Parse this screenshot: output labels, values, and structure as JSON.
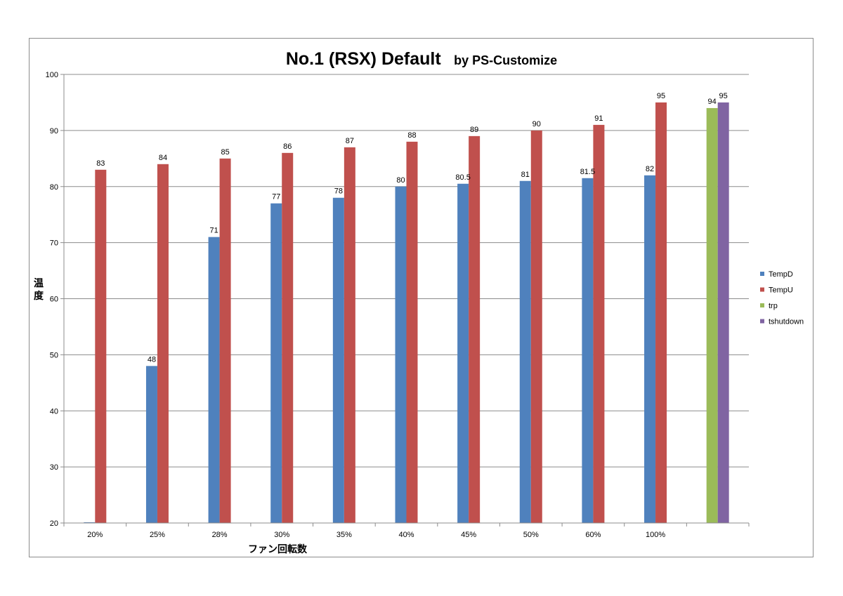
{
  "chart_data": {
    "type": "bar",
    "title": "No.1 (RSX)  Default",
    "subtitle": "by PS-Customize",
    "xlabel": "ファン回転数",
    "ylabel": "温度",
    "ylim": [
      20,
      100
    ],
    "yticks": [
      20,
      30,
      40,
      50,
      60,
      70,
      80,
      90,
      100
    ],
    "grid": true,
    "legend_position": "right",
    "categories": [
      "20%",
      "25%",
      "28%",
      "30%",
      "35%",
      "40%",
      "45%",
      "50%",
      "60%",
      "100%",
      ""
    ],
    "series": [
      {
        "name": "TempD",
        "color": "#4f81bd",
        "values": [
          20,
          48,
          71,
          77,
          78,
          80,
          80.5,
          81,
          81.5,
          82,
          null
        ],
        "labels": [
          "",
          "48",
          "71",
          "77",
          "78",
          "80",
          "80.5",
          "81",
          "81.5",
          "82",
          ""
        ]
      },
      {
        "name": "TempU",
        "color": "#c0504d",
        "values": [
          83,
          84,
          85,
          86,
          87,
          88,
          89,
          90,
          91,
          95,
          null
        ],
        "labels": [
          "83",
          "84",
          "85",
          "86",
          "87",
          "88",
          "89",
          "90",
          "91",
          "95",
          ""
        ]
      },
      {
        "name": "trp",
        "color": "#9bbb59",
        "values": [
          null,
          null,
          null,
          null,
          null,
          null,
          null,
          null,
          null,
          null,
          94
        ],
        "labels": [
          "",
          "",
          "",
          "",
          "",
          "",
          "",
          "",
          "",
          "",
          "94"
        ]
      },
      {
        "name": "tshutdown",
        "color": "#8064a2",
        "values": [
          null,
          null,
          null,
          null,
          null,
          null,
          null,
          null,
          null,
          null,
          95
        ],
        "labels": [
          "",
          "",
          "",
          "",
          "",
          "",
          "",
          "",
          "",
          "",
          "95"
        ]
      }
    ]
  }
}
